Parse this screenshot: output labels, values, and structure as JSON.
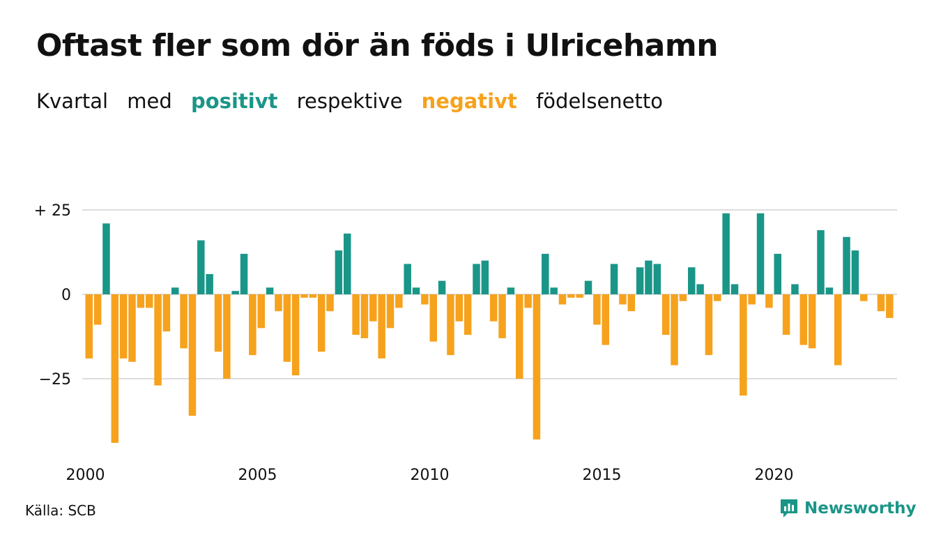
{
  "title": "Oftast fler som dör än föds i Ulricehamn",
  "subtitle": {
    "word1": "Kvartal",
    "word2": "med",
    "positive": "positivt",
    "word3": "respektive",
    "negative": "negativt",
    "word4": "födelsenetto"
  },
  "colors": {
    "positive": "#1a9688",
    "negative": "#f6a21d",
    "grid": "#dddddd",
    "brand": "#1a9688"
  },
  "source": "Källa: SCB",
  "brand": {
    "name": "Newsworthy",
    "icon": "newsworthy-logo-icon"
  },
  "chart_data": {
    "type": "bar",
    "title": "Oftast fler som dör än föds i Ulricehamn",
    "subtitle": "Kvartal med positivt respektive negativt födelsenetto",
    "xlabel": "",
    "ylabel": "",
    "ylim": [
      -45,
      27
    ],
    "y_ticks": [
      {
        "value": 25,
        "label": "+ 25"
      },
      {
        "value": 0,
        "label": "0"
      },
      {
        "value": -25,
        "label": "−25"
      }
    ],
    "x_ticks": [
      {
        "label": "2000",
        "year": 2000
      },
      {
        "label": "2005",
        "year": 2005
      },
      {
        "label": "2010",
        "year": 2010
      },
      {
        "label": "2015",
        "year": 2015
      },
      {
        "label": "2020",
        "year": 2020
      }
    ],
    "start_year": 2000,
    "quarters_per_year": 4,
    "grid": true,
    "legend": "none",
    "values": [
      -19,
      -9,
      21,
      -44,
      -19,
      -20,
      -4,
      -4,
      -27,
      -11,
      2,
      -16,
      -36,
      16,
      6,
      -17,
      -25,
      1,
      12,
      -18,
      -10,
      2,
      -5,
      -20,
      -24,
      -1,
      -1,
      -17,
      -5,
      13,
      18,
      -12,
      -13,
      -8,
      -19,
      -10,
      -4,
      9,
      2,
      -3,
      -14,
      4,
      -18,
      -8,
      -12,
      9,
      10,
      -8,
      -13,
      2,
      -25,
      -4,
      -43,
      12,
      2,
      -3,
      -1,
      -1,
      4,
      -9,
      -15,
      9,
      -3,
      -5,
      8,
      10,
      9,
      -12,
      -21,
      -2,
      8,
      3,
      -18,
      -2,
      24,
      3,
      -30,
      -3,
      24,
      -4,
      12,
      -12,
      3,
      -15,
      -16,
      19,
      2,
      -21,
      17,
      13,
      -2,
      0,
      -5,
      -7
    ]
  }
}
